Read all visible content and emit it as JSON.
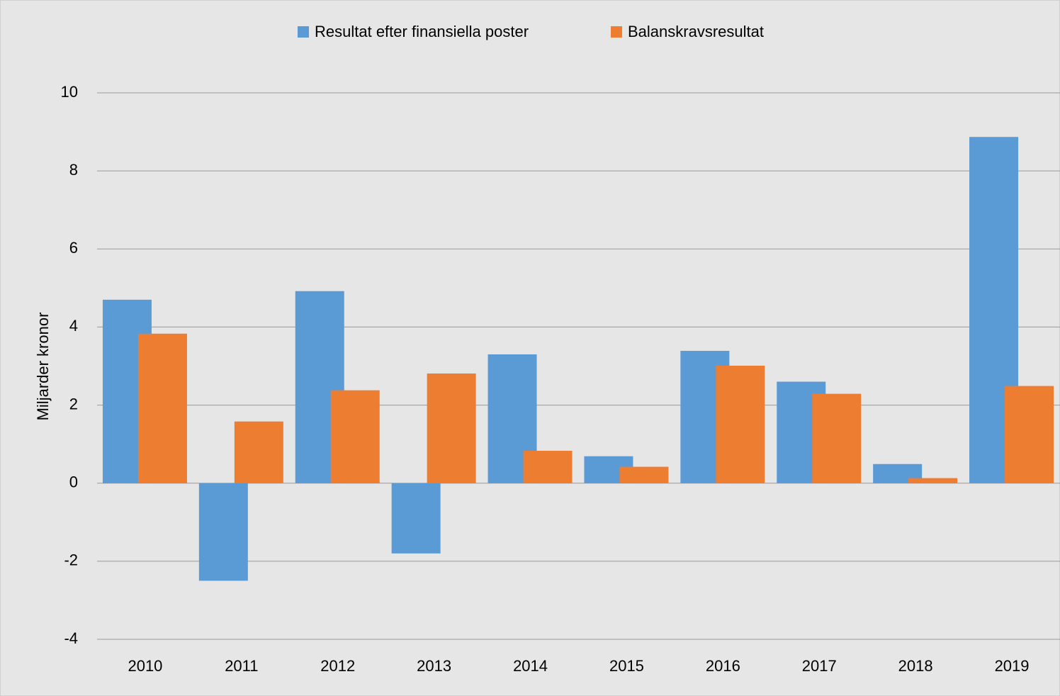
{
  "chart_data": {
    "type": "bar",
    "y_label": "Miljarder kronor",
    "categories": [
      "2010",
      "2011",
      "2012",
      "2013",
      "2014",
      "2015",
      "2016",
      "2017",
      "2018",
      "2019"
    ],
    "series": [
      {
        "name": "Resultat efter finansiella poster",
        "color": "#5b9bd5",
        "values": [
          4.7,
          -2.5,
          4.92,
          -1.8,
          3.3,
          0.69,
          3.39,
          2.6,
          0.49,
          8.87
        ]
      },
      {
        "name": "Balanskravsresultat",
        "color": "#ed7d31",
        "values": [
          3.83,
          1.58,
          2.38,
          2.81,
          0.83,
          0.42,
          3.01,
          2.29,
          0.13,
          2.49
        ]
      }
    ],
    "ylim": [
      -4,
      10
    ],
    "yticks": [
      -4,
      -2,
      0,
      2,
      4,
      6,
      8,
      10
    ],
    "grid": true,
    "legend": "top"
  }
}
